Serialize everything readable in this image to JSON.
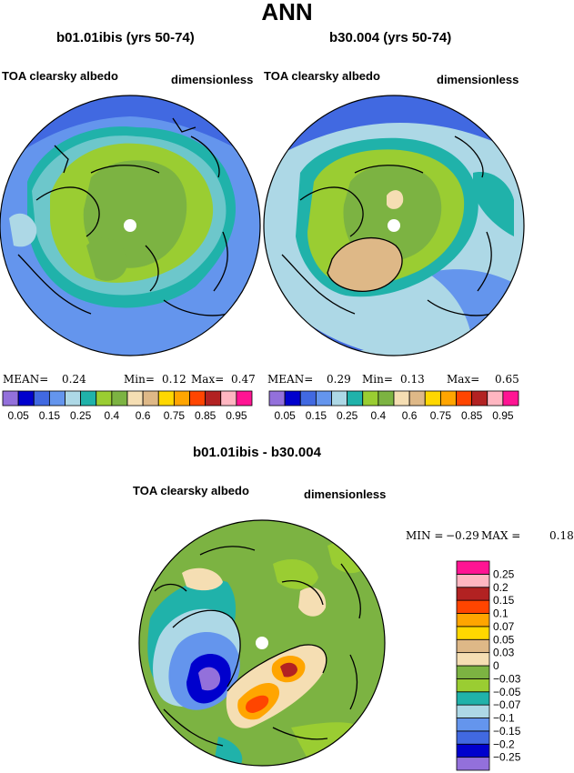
{
  "page_title": "ANN",
  "panels": [
    {
      "case_title": "b01.01ibis (yrs 50-74)",
      "variable": "TOA clearsky albedo",
      "units": "dimensionless",
      "stats": {
        "mean_label": "MEAN=",
        "mean": "0.24",
        "min_label": "Min=",
        "min": "0.12",
        "max_label": "Max=",
        "max": "0.47"
      }
    },
    {
      "case_title": "b30.004 (yrs 50-74)",
      "variable": "TOA clearsky albedo",
      "units": "dimensionless",
      "stats": {
        "mean_label": "MEAN=",
        "mean": "0.29",
        "min_label": "Min=",
        "min": "0.13",
        "max_label": "Max=",
        "max": "0.65"
      }
    }
  ],
  "diff_panel": {
    "case_title": "b01.01ibis - b30.004",
    "variable": "TOA clearsky albedo",
    "units": "dimensionless",
    "stats": {
      "min_label": "MIN =",
      "min": "−0.29",
      "max_label": "MAX =",
      "max": "0.18"
    }
  },
  "chart_data": [
    {
      "type": "heatmap",
      "projection": "north-polar-stereographic",
      "title": "b01.01ibis (yrs 50-74)",
      "colorbar": {
        "orientation": "horizontal",
        "colors": [
          "#9370db",
          "#0000cd",
          "#4169e1",
          "#6495ed",
          "#add8e6",
          "#20b2aa",
          "#9acd32",
          "#7cb342",
          "#f5deb3",
          "#deb887",
          "#ffd700",
          "#ffa500",
          "#ff4500",
          "#b22222",
          "#ffb6c1",
          "#ff1493"
        ],
        "tick_labels": [
          "0.05",
          "0.15",
          "0.25",
          "0.4",
          "0.6",
          "0.75",
          "0.85",
          "0.95"
        ]
      },
      "mean": 0.24,
      "min": 0.12,
      "max": 0.47
    },
    {
      "type": "heatmap",
      "projection": "north-polar-stereographic",
      "title": "b30.004 (yrs 50-74)",
      "colorbar": {
        "orientation": "horizontal",
        "colors": [
          "#9370db",
          "#0000cd",
          "#4169e1",
          "#6495ed",
          "#add8e6",
          "#20b2aa",
          "#9acd32",
          "#7cb342",
          "#f5deb3",
          "#deb887",
          "#ffd700",
          "#ffa500",
          "#ff4500",
          "#b22222",
          "#ffb6c1",
          "#ff1493"
        ],
        "tick_labels": [
          "0.05",
          "0.15",
          "0.25",
          "0.4",
          "0.6",
          "0.75",
          "0.85",
          "0.95"
        ]
      },
      "mean": 0.29,
      "min": 0.13,
      "max": 0.65
    },
    {
      "type": "heatmap",
      "projection": "north-polar-stereographic",
      "title": "b01.01ibis - b30.004",
      "colorbar": {
        "orientation": "vertical",
        "colors": [
          "#9370db",
          "#0000cd",
          "#4169e1",
          "#6495ed",
          "#add8e6",
          "#20b2aa",
          "#9acd32",
          "#7cb342",
          "#f5deb3",
          "#deb887",
          "#ffd700",
          "#ffa500",
          "#ff4500",
          "#b22222",
          "#ffb6c1",
          "#ff1493"
        ],
        "tick_labels": [
          "−0.25",
          "−0.2",
          "−0.15",
          "−0.1",
          "−0.07",
          "−0.05",
          "−0.03",
          "0",
          "0.03",
          "0.05",
          "0.07",
          "0.1",
          "0.15",
          "0.2",
          "0.25"
        ]
      },
      "min": -0.29,
      "max": 0.18
    }
  ]
}
